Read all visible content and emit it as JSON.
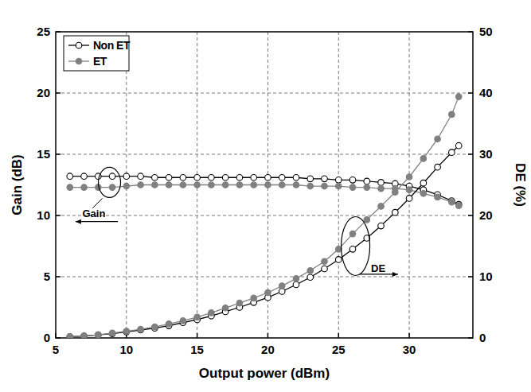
{
  "chart_data": {
    "type": "line",
    "x_label": "Output power (dBm)",
    "y_label": "Gain (dB)",
    "y2_label": "DE (%)",
    "x": [
      6,
      7,
      8,
      9,
      10,
      11,
      12,
      13,
      14,
      15,
      16,
      17,
      18,
      19,
      20,
      21,
      22,
      23,
      24,
      25,
      26,
      27,
      28,
      29,
      30,
      31,
      32,
      33,
      33.5
    ],
    "series": [
      {
        "name": "Non ET",
        "color": "#000000",
        "marker": "circle-open",
        "values": [
          13.2,
          13.2,
          13.2,
          13.2,
          13.2,
          13.2,
          13.1,
          13.1,
          13.1,
          13.1,
          13.1,
          13.1,
          13.1,
          13.1,
          13.1,
          13.1,
          13.1,
          13.0,
          13.0,
          12.9,
          12.9,
          12.8,
          12.7,
          12.6,
          12.4,
          12.1,
          11.7,
          11.2,
          10.9
        ]
      },
      {
        "name": "ET",
        "color": "#808080",
        "marker": "circle-filled",
        "values": [
          12.3,
          12.3,
          12.3,
          12.3,
          12.4,
          12.5,
          12.5,
          12.5,
          12.5,
          12.5,
          12.5,
          12.5,
          12.5,
          12.5,
          12.5,
          12.5,
          12.5,
          12.4,
          12.4,
          12.4,
          12.3,
          12.3,
          12.2,
          12.2,
          12.1,
          11.8,
          11.5,
          11.1,
          10.8
        ]
      },
      {
        "name": "Non ET",
        "color": "#000000",
        "marker": "circle-open",
        "axis": "y2",
        "values": [
          0.2,
          0.3,
          0.5,
          0.7,
          1.0,
          1.3,
          1.6,
          2.0,
          2.5,
          3.0,
          3.6,
          4.3,
          5.0,
          5.8,
          6.6,
          7.6,
          8.7,
          9.9,
          11.3,
          12.8,
          14.5,
          16.3,
          18.3,
          20.5,
          22.8,
          25.3,
          27.9,
          30.3,
          31.4
        ]
      },
      {
        "name": "ET",
        "color": "#808080",
        "marker": "circle-filled",
        "axis": "y2",
        "values": [
          0.2,
          0.3,
          0.5,
          0.8,
          1.1,
          1.4,
          1.8,
          2.3,
          2.8,
          3.4,
          4.1,
          4.9,
          5.7,
          6.5,
          7.4,
          8.5,
          9.7,
          11.0,
          12.5,
          14.5,
          17.0,
          19.3,
          21.5,
          23.8,
          26.3,
          29.3,
          32.5,
          36.5,
          39.4
        ]
      }
    ],
    "annotations": [
      {
        "text": "Gain"
      },
      {
        "text": "DE"
      }
    ],
    "xlim": [
      5,
      34.5
    ],
    "xticks": [
      5,
      10,
      15,
      20,
      25,
      30
    ],
    "ylim": [
      0,
      25
    ],
    "yticks": [
      0,
      5,
      10,
      15,
      20,
      25
    ],
    "y2lim": [
      0,
      50
    ],
    "y2ticks": [
      0,
      10,
      20,
      30,
      40,
      50
    ],
    "grid": true,
    "legend": "upper left"
  }
}
